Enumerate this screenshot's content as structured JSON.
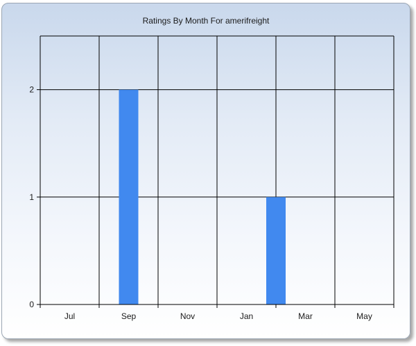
{
  "chart_data": {
    "type": "bar",
    "title": "Ratings By Month For amerifreight",
    "xlabel": "",
    "ylabel": "",
    "x_ticks": [
      "Jul",
      "Sep",
      "Nov",
      "Jan",
      "Mar",
      "May"
    ],
    "categories": [
      "Sep",
      "Feb"
    ],
    "values": [
      2,
      1
    ],
    "y_ticks": [
      0,
      1,
      2
    ],
    "ylim": [
      0,
      2.5
    ],
    "grid": true,
    "bar_color": "#4189ef"
  }
}
